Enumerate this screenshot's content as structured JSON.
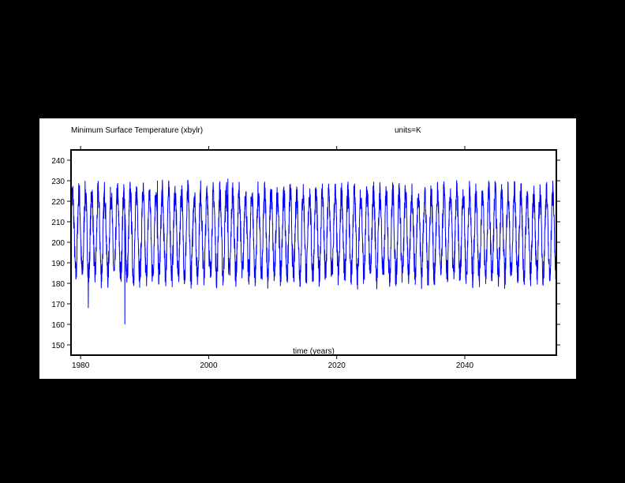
{
  "chart_data": {
    "type": "line",
    "title": "Minimum Surface Temperature (xbylr)",
    "units_label": "units=K",
    "xlabel": "time (years)",
    "ylabel": "",
    "xlim": [
      1978.5,
      2054.3
    ],
    "ylim": [
      145,
      245
    ],
    "x_ticks": [
      1980,
      2000,
      2020,
      2040
    ],
    "y_ticks": [
      150,
      160,
      170,
      180,
      190,
      200,
      210,
      220,
      230,
      240
    ],
    "x_tick_labels": [
      "1980",
      "2000",
      "2020",
      "2040"
    ],
    "y_tick_labels": [
      "150",
      "160",
      "170",
      "180",
      "190",
      "200",
      "210",
      "220",
      "230",
      "240"
    ],
    "grid": false,
    "series": [
      {
        "color": "#0000ff",
        "description_of_values": "seasonal cycle sampled ~40 points per year, yearly minimum near 184 K and maximum near 224 K",
        "x_start": 1978.5,
        "x_end": 2054.3,
        "points_per_year": 40,
        "seasonal_min": 184,
        "seasonal_max": 224,
        "spikes": [
          {
            "x": 1981.2,
            "y": 168
          },
          {
            "x": 1986.9,
            "y": 160
          },
          {
            "x": 2003.0,
            "y": 231
          },
          {
            "x": 1992.0,
            "y": 230
          }
        ]
      }
    ]
  }
}
